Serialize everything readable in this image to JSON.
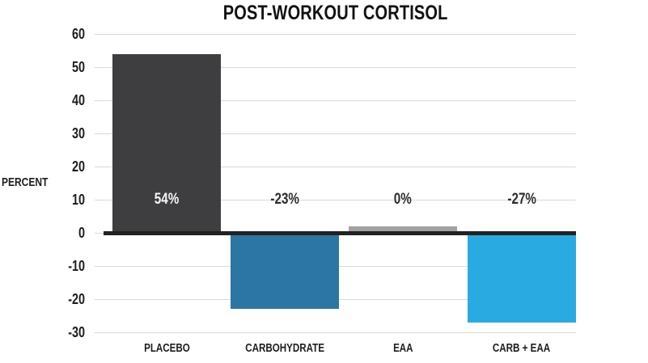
{
  "title": "POST-WORKOUT CORTISOL",
  "y_axis_label": "PERCENT",
  "chart_data": {
    "type": "bar",
    "title": "POST-WORKOUT CORTISOL",
    "ylabel": "PERCENT",
    "xlabel": "",
    "categories": [
      "PLACEBO",
      "CARBOHYDRATE",
      "EAA",
      "CARB + EAA"
    ],
    "values": [
      54,
      -23,
      0,
      -27
    ],
    "data_labels": [
      "54%",
      "-23%",
      "0%",
      "-27%"
    ],
    "drawn_values": [
      54,
      -23,
      2,
      -27
    ],
    "y_ticks": [
      60,
      50,
      40,
      30,
      20,
      10,
      0,
      -10,
      -20,
      -30
    ],
    "ylim": [
      -30,
      60
    ],
    "grid": true,
    "legend": false,
    "bar_colors": [
      "#3e3e40",
      "#2b76a5",
      "#a2a2a2",
      "#29abe2"
    ],
    "bar_hatched": [
      true,
      true,
      false,
      false
    ],
    "data_label_colors": [
      "#f7f7f7",
      "#2e2e2e",
      "#2e2e2e",
      "#2e2e2e"
    ],
    "gridline_color": "#d9d9d9",
    "zero_line_color": "#222222",
    "text_color": "#1d1d1d",
    "background_color": "#ffffff"
  }
}
